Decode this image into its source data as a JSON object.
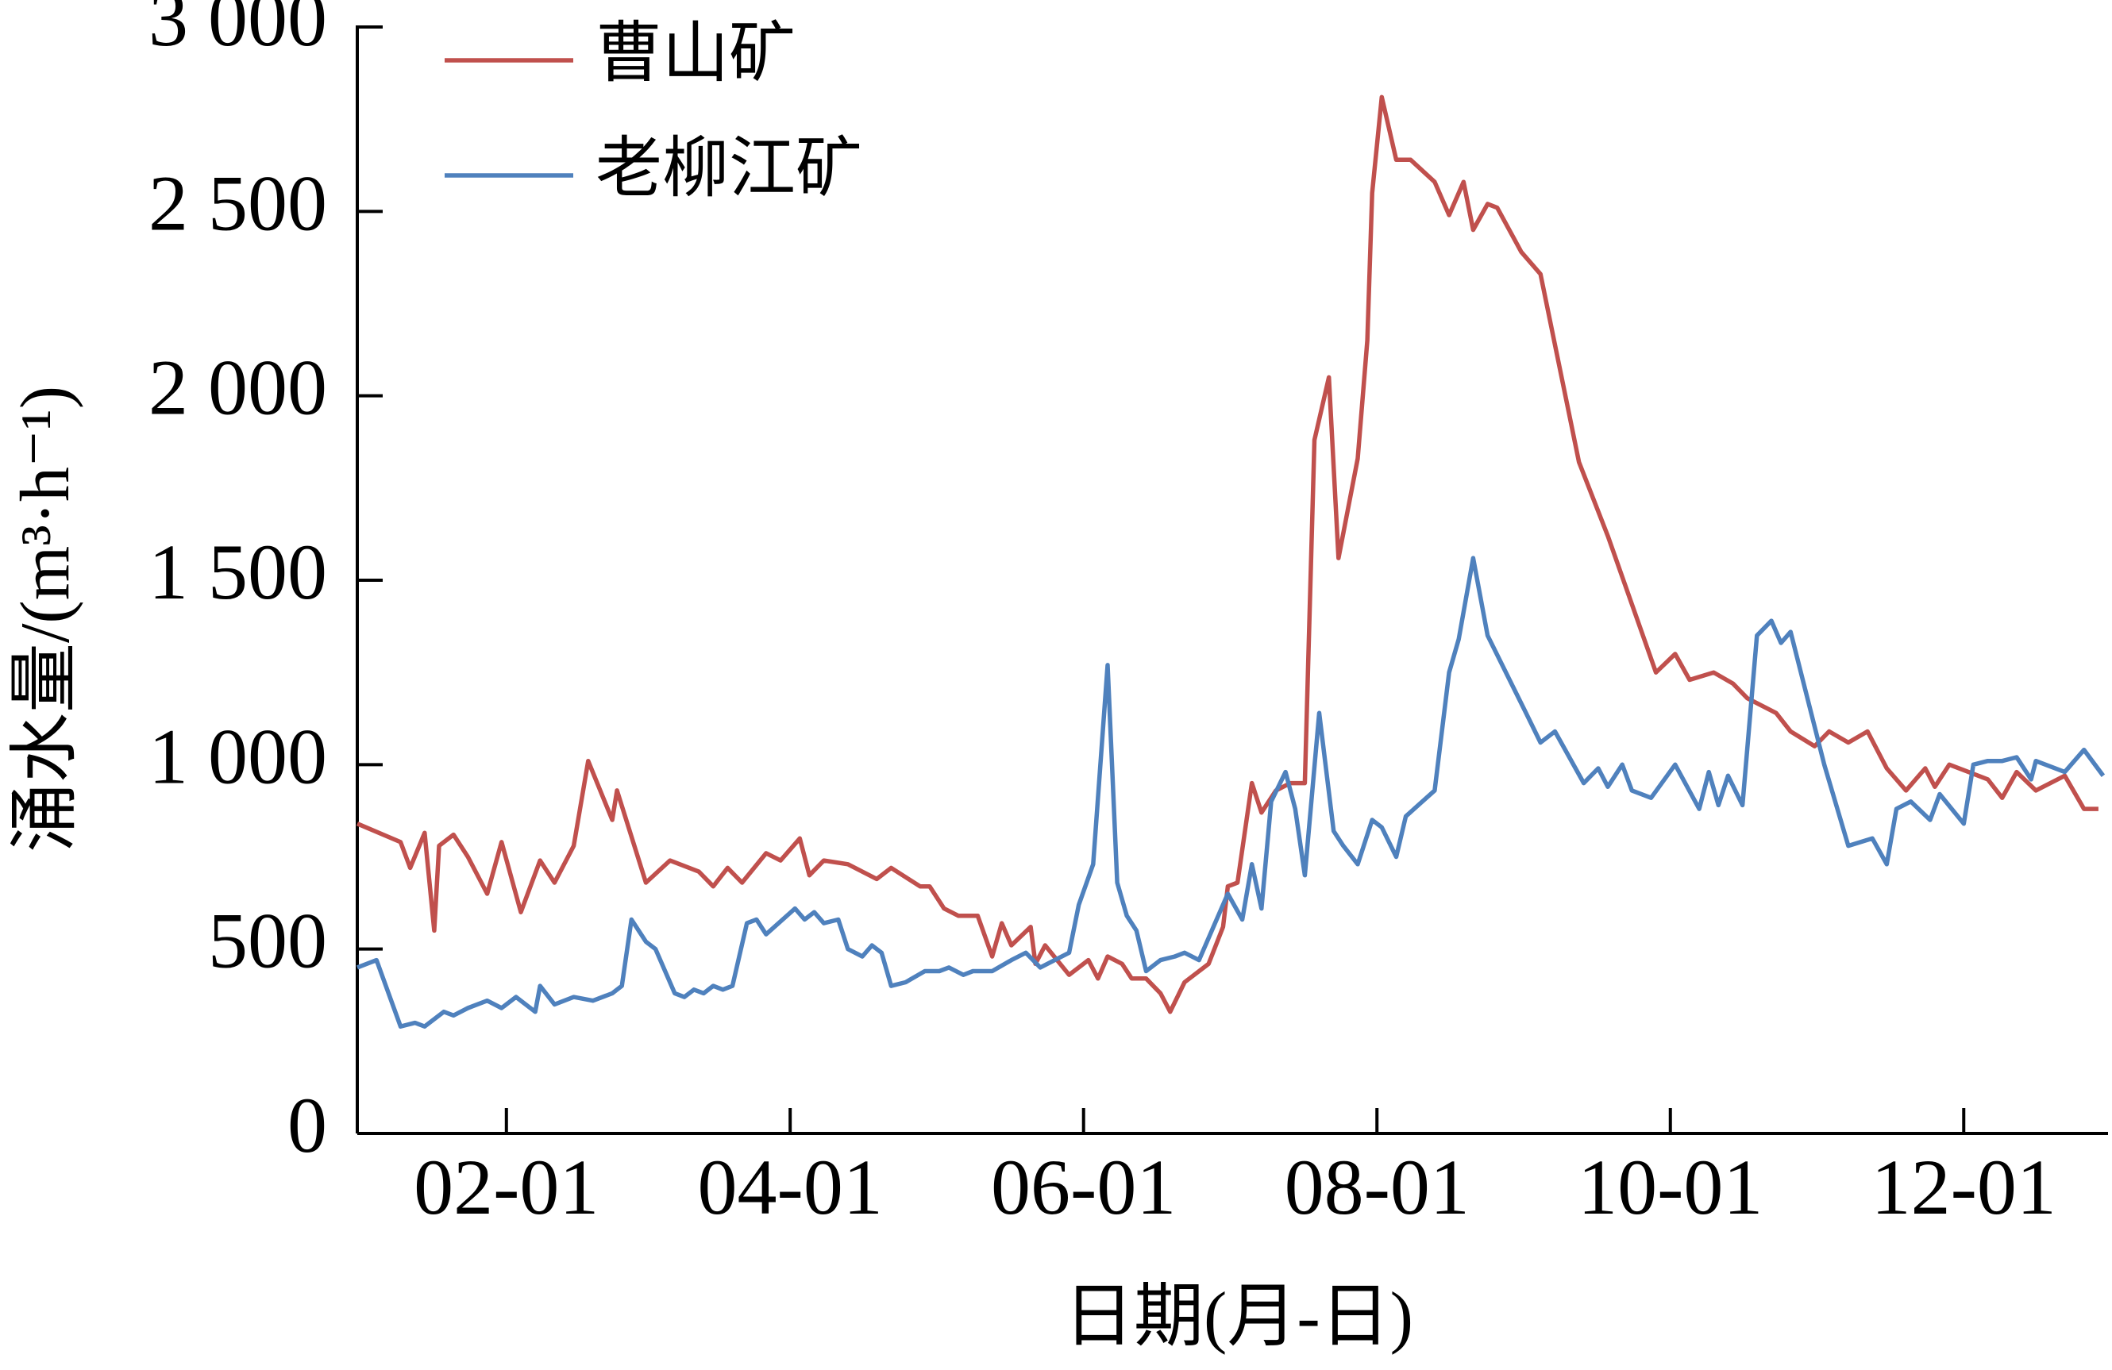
{
  "chart_data": {
    "type": "line",
    "x_label": "日期(月-日)",
    "y_label": "涌水量/(m³·h⁻¹)",
    "xlim": [
      "01-01",
      "12-31"
    ],
    "xticks": [
      "02-01",
      "04-01",
      "06-01",
      "08-01",
      "10-01",
      "12-01"
    ],
    "ylim": [
      0,
      3000
    ],
    "yticks": [
      0,
      500,
      {
        "value": 1000,
        "label": "1 000"
      },
      {
        "value": 1500,
        "label": "1 500"
      },
      {
        "value": 2000,
        "label": "2 000"
      },
      {
        "value": 2500,
        "label": "2 500"
      },
      {
        "value": 3000,
        "label": "3 000"
      }
    ],
    "grid": false,
    "legend": "upper left",
    "series": [
      {
        "name": "曹山矿",
        "color": "#c0504d",
        "x": [
          "01-01",
          "01-10",
          "01-12",
          "01-15",
          "01-17",
          "01-18",
          "01-21",
          "01-24",
          "01-28",
          "01-31",
          "02-04",
          "02-08",
          "02-11",
          "02-15",
          "02-18",
          "02-23",
          "02-24",
          "03-02",
          "03-07",
          "03-13",
          "03-16",
          "03-19",
          "03-22",
          "03-27",
          "03-30",
          "04-03",
          "04-05",
          "04-08",
          "04-13",
          "04-19",
          "04-22",
          "04-28",
          "04-30",
          "05-03",
          "05-06",
          "05-10",
          "05-13",
          "05-15",
          "05-17",
          "05-21",
          "05-22",
          "05-24",
          "05-29",
          "06-02",
          "06-04",
          "06-06",
          "06-09",
          "06-11",
          "06-14",
          "06-17",
          "06-19",
          "06-22",
          "06-27",
          "06-30",
          "07-01",
          "07-03",
          "07-06",
          "07-08",
          "07-11",
          "07-14",
          "07-17",
          "07-19",
          "07-22",
          "07-24",
          "07-28",
          "07-30",
          "07-31",
          "08-02",
          "08-05",
          "08-08",
          "08-13",
          "08-16",
          "08-19",
          "08-21",
          "08-24",
          "08-26",
          "08-31",
          "09-04",
          "09-12",
          "09-18",
          "09-28",
          "10-02",
          "10-05",
          "10-10",
          "10-14",
          "10-17",
          "10-23",
          "10-26",
          "10-31",
          "11-03",
          "11-07",
          "11-11",
          "11-15",
          "11-19",
          "11-23",
          "11-25",
          "11-28",
          "12-02",
          "12-06",
          "12-09",
          "12-12",
          "12-16",
          "12-22",
          "12-26",
          "12-29"
        ],
        "values": [
          840,
          790,
          720,
          815,
          550,
          780,
          810,
          750,
          650,
          790,
          600,
          740,
          680,
          780,
          1010,
          850,
          930,
          680,
          740,
          710,
          670,
          720,
          680,
          760,
          740,
          800,
          700,
          740,
          730,
          690,
          720,
          670,
          670,
          610,
          590,
          590,
          480,
          570,
          510,
          560,
          460,
          510,
          430,
          470,
          420,
          480,
          460,
          420,
          420,
          380,
          330,
          410,
          460,
          560,
          670,
          680,
          950,
          870,
          930,
          950,
          950,
          1880,
          2050,
          1560,
          1830,
          2150,
          2550,
          2810,
          2640,
          2640,
          2580,
          2490,
          2580,
          2450,
          2520,
          2510,
          2390,
          2330,
          1820,
          1620,
          1250,
          1300,
          1230,
          1250,
          1220,
          1180,
          1140,
          1090,
          1050,
          1090,
          1060,
          1090,
          990,
          930,
          990,
          940,
          1000,
          980,
          960,
          910,
          980,
          930,
          970,
          880,
          880
        ]
      },
      {
        "name": "老柳江矿",
        "color": "#4f81bd",
        "x": [
          "01-01",
          "01-05",
          "01-10",
          "01-13",
          "01-15",
          "01-19",
          "01-21",
          "01-24",
          "01-28",
          "01-31",
          "02-03",
          "02-07",
          "02-08",
          "02-11",
          "02-15",
          "02-19",
          "02-23",
          "02-25",
          "02-27",
          "03-02",
          "03-04",
          "03-08",
          "03-10",
          "03-12",
          "03-14",
          "03-16",
          "03-18",
          "03-20",
          "03-23",
          "03-25",
          "03-27",
          "04-02",
          "04-04",
          "04-06",
          "04-08",
          "04-11",
          "04-13",
          "04-16",
          "04-18",
          "04-20",
          "04-22",
          "04-25",
          "04-29",
          "05-02",
          "05-04",
          "05-07",
          "05-09",
          "05-13",
          "05-17",
          "05-20",
          "05-23",
          "05-26",
          "05-29",
          "05-31",
          "06-03",
          "06-06",
          "06-08",
          "06-10",
          "06-12",
          "06-14",
          "06-17",
          "06-20",
          "06-22",
          "06-25",
          "07-01",
          "07-04",
          "07-06",
          "07-08",
          "07-10",
          "07-13",
          "07-15",
          "07-17",
          "07-20",
          "07-23",
          "07-25",
          "07-28",
          "07-31",
          "08-02",
          "08-05",
          "08-07",
          "08-13",
          "08-16",
          "08-18",
          "08-21",
          "08-24",
          "09-01",
          "09-04",
          "09-07",
          "09-13",
          "09-16",
          "09-18",
          "09-21",
          "09-23",
          "09-27",
          "10-02",
          "10-07",
          "10-09",
          "10-11",
          "10-13",
          "10-16",
          "10-19",
          "10-22",
          "10-24",
          "10-26",
          "11-02",
          "11-07",
          "11-12",
          "11-15",
          "11-17",
          "11-20",
          "11-24",
          "11-26",
          "12-01",
          "12-03",
          "12-06",
          "12-09",
          "12-12",
          "12-15",
          "12-16",
          "12-22",
          "12-26",
          "12-30"
        ],
        "values": [
          450,
          470,
          290,
          300,
          290,
          330,
          320,
          340,
          360,
          340,
          370,
          330,
          400,
          350,
          370,
          360,
          380,
          400,
          580,
          520,
          500,
          380,
          370,
          390,
          380,
          400,
          390,
          400,
          570,
          580,
          540,
          610,
          580,
          600,
          570,
          580,
          500,
          480,
          510,
          490,
          400,
          410,
          440,
          440,
          450,
          430,
          440,
          440,
          470,
          490,
          450,
          470,
          490,
          620,
          730,
          1270,
          680,
          590,
          550,
          440,
          470,
          480,
          490,
          470,
          650,
          580,
          730,
          610,
          900,
          980,
          880,
          700,
          1140,
          820,
          780,
          730,
          850,
          830,
          750,
          860,
          930,
          1250,
          1340,
          1560,
          1350,
          1140,
          1060,
          1090,
          950,
          990,
          940,
          1000,
          930,
          910,
          1000,
          880,
          980,
          890,
          970,
          890,
          1350,
          1390,
          1330,
          1360,
          1000,
          780,
          800,
          730,
          880,
          900,
          850,
          920,
          840,
          1000,
          1010,
          1010,
          1020,
          960,
          1010,
          980,
          1040,
          970
        ]
      }
    ]
  }
}
